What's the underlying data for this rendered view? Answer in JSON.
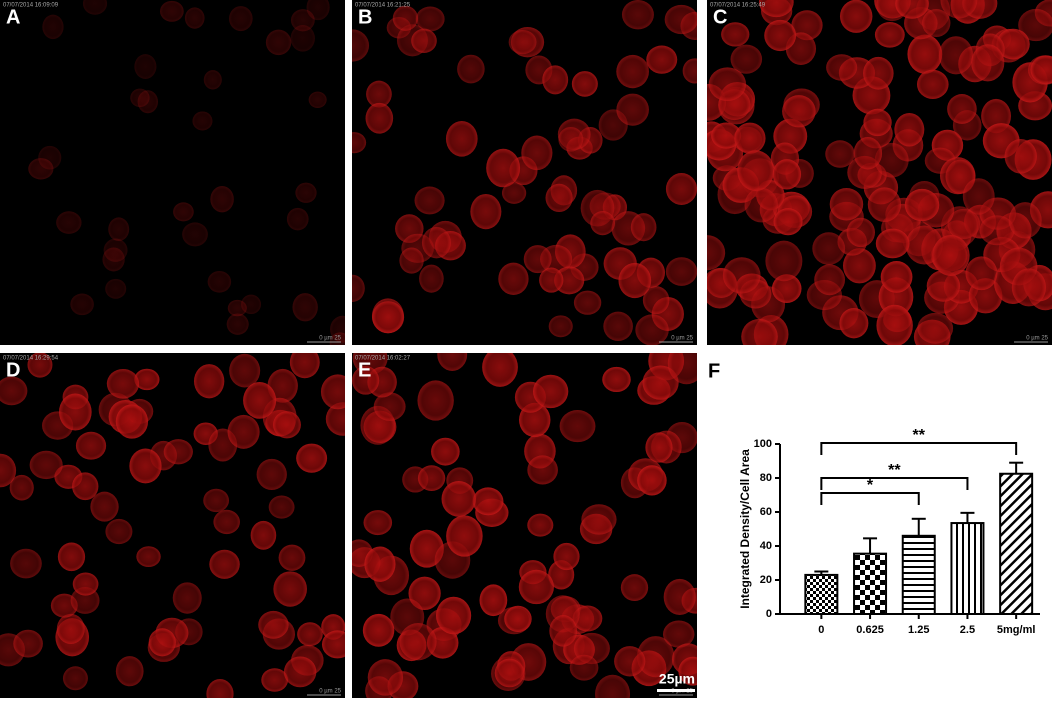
{
  "panels": [
    {
      "label": "A",
      "timestamp": "07/07/2014 16:09:09",
      "scale": "0 µm 25"
    },
    {
      "label": "B",
      "timestamp": "07/07/2014 16:21:25",
      "scale": "0 µm 25"
    },
    {
      "label": "C",
      "timestamp": "07/07/2014 16:25:49",
      "scale": "0 µm 25"
    },
    {
      "label": "D",
      "timestamp": "07/07/2014 16:29:54",
      "scale": "0 µm 25"
    },
    {
      "label": "E",
      "timestamp": "07/07/2014 16:02:27",
      "scale": "0 µm 25",
      "scale_bar": "25µm"
    }
  ],
  "chart_data": {
    "type": "bar",
    "panel_label": "F",
    "ylabel": "Integrated Density/Cell Area",
    "categories": [
      "0",
      "0.625",
      "1.25",
      "2.5",
      "5mg/ml"
    ],
    "values": [
      23,
      35.5,
      46,
      53.5,
      82.5
    ],
    "errors": [
      2,
      9,
      10,
      6,
      6.5
    ],
    "patterns": [
      "checker-fine",
      "checker",
      "horizontal",
      "vertical",
      "diagonal"
    ],
    "color": "#000000",
    "annotations": [
      "*",
      "**",
      "**"
    ],
    "ylim": [
      0,
      100
    ],
    "yticks": [
      0,
      20,
      40,
      60,
      80,
      100
    ]
  }
}
